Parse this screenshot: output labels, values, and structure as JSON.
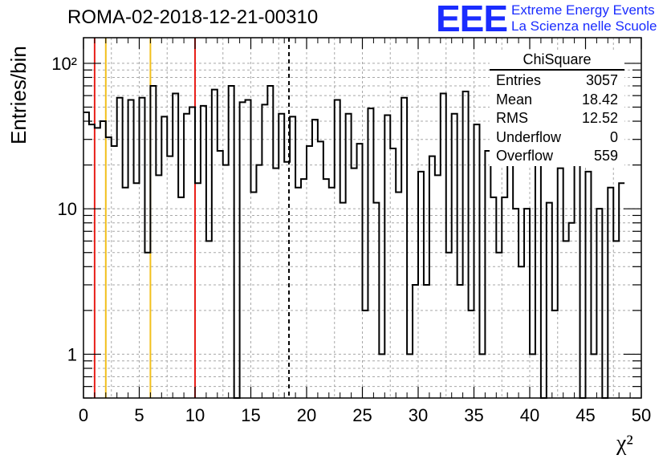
{
  "title": "ROMA-02-2018-12-21-00310",
  "logo": {
    "mark": "EEE",
    "line1": "Extreme Energy Events",
    "line2": "La Scienza nelle Scuole"
  },
  "stats": {
    "title": "ChiSquare",
    "rows": [
      {
        "label": "Entries",
        "value": "3057"
      },
      {
        "label": "Mean",
        "value": "18.42"
      },
      {
        "label": "RMS",
        "value": "12.52"
      },
      {
        "label": "Underflow",
        "value": "0"
      },
      {
        "label": "Overflow",
        "value": "559"
      }
    ]
  },
  "chart_data": {
    "type": "histogram",
    "title": "ROMA-02-2018-12-21-00310",
    "xlabel": "χ²",
    "ylabel": "Entries/bin",
    "xlim": [
      0,
      50
    ],
    "ylim": [
      0.5,
      150
    ],
    "yscale": "log",
    "bin_width": 0.5,
    "xticks": [
      "0",
      "5",
      "10",
      "15",
      "20",
      "25",
      "30",
      "35",
      "40",
      "45",
      "50"
    ],
    "yticks": [
      {
        "value": 1,
        "label": "1"
      },
      {
        "value": 10,
        "label": "10"
      },
      {
        "value": 100,
        "label": "10²"
      }
    ],
    "grid": true,
    "values": [
      46,
      38,
      36,
      40,
      31,
      27,
      58,
      14,
      56,
      15,
      58,
      5,
      70,
      17,
      43,
      23,
      62,
      12,
      45,
      50,
      15,
      51,
      6,
      66,
      25,
      20,
      70,
      0,
      54,
      56,
      13,
      20,
      52,
      70,
      19,
      45,
      21,
      43,
      14,
      16,
      27,
      41,
      29,
      16,
      14,
      56,
      11,
      45,
      19,
      28,
      2,
      49,
      11,
      1,
      44,
      26,
      13,
      58,
      1,
      3,
      18,
      3,
      23,
      17,
      62,
      5,
      45,
      3,
      64,
      2,
      38,
      1,
      25,
      12,
      5,
      12,
      61,
      10,
      4,
      10,
      1,
      30,
      0,
      11,
      2,
      19,
      6,
      8,
      21,
      0,
      18,
      1,
      10,
      0,
      14,
      6,
      15
    ],
    "vertical_lines": [
      {
        "x": 1,
        "color": "#e8201a",
        "style": "solid"
      },
      {
        "x": 2,
        "color": "#f2c01c",
        "style": "solid"
      },
      {
        "x": 6,
        "color": "#f2c01c",
        "style": "solid"
      },
      {
        "x": 10,
        "color": "#e8201a",
        "style": "solid"
      },
      {
        "x": 18.42,
        "color": "#000000",
        "style": "dashed"
      }
    ],
    "line_color": "#000000"
  }
}
